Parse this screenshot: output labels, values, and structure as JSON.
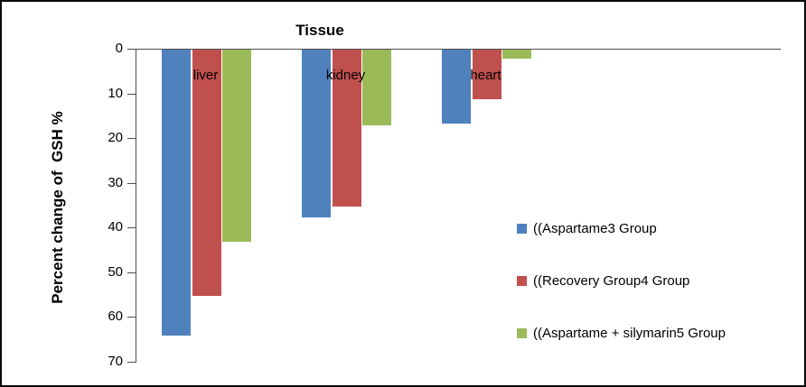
{
  "chart_data": {
    "type": "bar",
    "title": "Tissue",
    "ylabel": "Percent change of  GSH %",
    "categories": [
      "liver",
      "kidney",
      "heart"
    ],
    "series": [
      {
        "name": "((Aspartame3 Group",
        "color": "#4f81bd",
        "values": [
          64,
          37.5,
          16.5
        ]
      },
      {
        "name": "((Recovery Group4 Group",
        "color": "#c0504d",
        "values": [
          55,
          35,
          11
        ]
      },
      {
        "name": "((Aspartame + silymarin5 Group",
        "color": "#9bbb59",
        "values": [
          43,
          17,
          2
        ]
      }
    ],
    "y_axis": {
      "min": 0,
      "max": 70,
      "step": 10,
      "ticks": [
        "0",
        "10",
        "20",
        "30",
        "40",
        "50",
        "60",
        "70"
      ],
      "direction": "inverted-downward"
    },
    "legend_position": "right",
    "grid": false
  }
}
